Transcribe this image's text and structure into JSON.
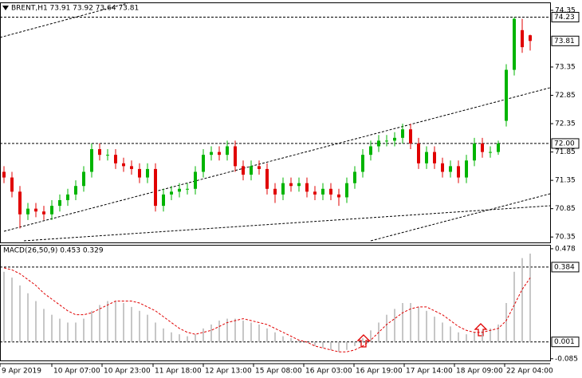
{
  "chart_data": [
    {
      "type": "candlestick",
      "title": "BRENT,H1  73.91 73.92 73.64 73.81",
      "up_color": "#00b400",
      "down_color": "#e00000",
      "open": [
        71.5,
        71.4,
        71.15,
        70.75,
        70.85,
        70.8,
        70.75,
        70.9,
        71.0,
        71.1,
        71.25,
        71.5,
        71.9,
        71.8,
        71.8,
        71.65,
        71.6,
        71.55,
        71.4,
        71.55,
        70.9,
        71.1,
        71.15,
        71.2,
        71.2,
        71.5,
        71.8,
        71.85,
        71.8,
        71.95,
        71.6,
        71.45,
        71.6,
        71.55,
        71.2,
        71.1,
        71.3,
        71.25,
        71.3,
        71.15,
        71.1,
        71.2,
        71.1,
        71.05,
        71.3,
        71.5,
        71.8,
        71.95,
        72.05,
        72.05,
        72.1,
        72.25,
        72.0,
        71.65,
        71.85,
        71.65,
        71.5,
        71.6,
        71.4,
        71.7,
        72.0,
        71.85,
        71.85,
        72.4,
        73.3,
        74.0,
        73.91
      ],
      "high": [
        71.6,
        71.5,
        71.25,
        70.95,
        70.95,
        70.9,
        71.0,
        71.1,
        71.2,
        71.35,
        71.6,
        72.0,
        72.0,
        71.9,
        71.9,
        71.75,
        71.7,
        71.65,
        71.65,
        71.65,
        71.2,
        71.25,
        71.3,
        71.3,
        71.6,
        71.9,
        71.95,
        71.95,
        72.05,
        72.05,
        71.7,
        71.7,
        71.7,
        71.65,
        71.3,
        71.4,
        71.4,
        71.4,
        71.4,
        71.25,
        71.3,
        71.3,
        71.2,
        71.4,
        71.6,
        71.9,
        72.05,
        72.15,
        72.15,
        72.2,
        72.35,
        72.35,
        72.1,
        71.95,
        71.95,
        71.75,
        71.7,
        71.7,
        71.8,
        72.1,
        72.1,
        71.95,
        72.05,
        73.4,
        74.23,
        74.2,
        73.92
      ],
      "low": [
        71.3,
        71.05,
        70.5,
        70.65,
        70.7,
        70.65,
        70.65,
        70.8,
        70.9,
        71.0,
        71.15,
        71.4,
        71.7,
        71.7,
        71.55,
        71.5,
        71.45,
        71.3,
        71.3,
        70.8,
        70.8,
        71.0,
        71.05,
        71.1,
        71.1,
        71.4,
        71.7,
        71.7,
        71.7,
        71.5,
        71.35,
        71.35,
        71.45,
        71.1,
        70.95,
        71.0,
        71.15,
        71.15,
        71.05,
        71.0,
        71.0,
        71.0,
        70.9,
        70.95,
        71.2,
        71.4,
        71.7,
        71.85,
        71.95,
        71.95,
        72.0,
        71.9,
        71.55,
        71.55,
        71.55,
        71.4,
        71.4,
        71.3,
        71.3,
        71.6,
        71.75,
        71.75,
        71.8,
        72.3,
        73.2,
        73.6,
        73.64
      ],
      "close": [
        71.4,
        71.15,
        70.75,
        70.85,
        70.8,
        70.75,
        70.9,
        71.0,
        71.1,
        71.25,
        71.5,
        71.9,
        71.8,
        71.8,
        71.65,
        71.6,
        71.55,
        71.4,
        71.55,
        70.9,
        71.1,
        71.15,
        71.2,
        71.2,
        71.5,
        71.8,
        71.85,
        71.8,
        71.95,
        71.6,
        71.45,
        71.6,
        71.55,
        71.2,
        71.1,
        71.3,
        71.25,
        71.3,
        71.15,
        71.1,
        71.2,
        71.1,
        71.05,
        71.3,
        71.5,
        71.8,
        71.95,
        72.05,
        72.05,
        72.1,
        72.25,
        72.0,
        71.65,
        71.85,
        71.65,
        71.5,
        71.6,
        71.4,
        71.7,
        72.0,
        71.85,
        71.85,
        72.0,
        73.3,
        74.2,
        73.7,
        73.81
      ],
      "xlim": [
        -0.5,
        68.5
      ],
      "xticks": [
        {
          "value": -0.5,
          "label": "9 Apr 2019"
        },
        {
          "value": 6,
          "label": "10 Apr 07:00"
        },
        {
          "value": 12.3,
          "label": "10 Apr 23:00"
        },
        {
          "value": 18.7,
          "label": "11 Apr 18:00"
        },
        {
          "value": 25,
          "label": "12 Apr 13:00"
        },
        {
          "value": 31.3,
          "label": "15 Apr 08:00"
        },
        {
          "value": 37.6,
          "label": "16 Apr 03:00"
        },
        {
          "value": 43.9,
          "label": "16 Apr 19:00"
        },
        {
          "value": 50.2,
          "label": "17 Apr 14:00"
        },
        {
          "value": 56.5,
          "label": "18 Apr 09:00"
        },
        {
          "value": 62.8,
          "label": "22 Apr 04:00"
        }
      ],
      "ylim": [
        70.24,
        74.49
      ],
      "yticks": [
        74.35,
        73.35,
        72.85,
        72.35,
        71.85,
        71.35,
        70.85,
        70.35
      ],
      "levels": [
        74.23,
        {
          "value": 72,
          "label": "72.00"
        }
      ],
      "last_price": 73.81
    },
    {
      "type": "macd",
      "title": "MACD(26,50,9) 0.453 0.329",
      "histogram_color": "#b4b4b4",
      "histogram": [
        0.36,
        0.33,
        0.29,
        0.25,
        0.21,
        0.17,
        0.14,
        0.12,
        0.1,
        0.1,
        0.12,
        0.16,
        0.19,
        0.21,
        0.21,
        0.2,
        0.18,
        0.16,
        0.14,
        0.1,
        0.07,
        0.05,
        0.04,
        0.03,
        0.04,
        0.07,
        0.09,
        0.11,
        0.12,
        0.12,
        0.11,
        0.1,
        0.09,
        0.07,
        0.05,
        0.03,
        0.02,
        0.01,
        0.0,
        -0.02,
        -0.03,
        -0.04,
        -0.05,
        -0.04,
        -0.02,
        0.02,
        0.06,
        0.1,
        0.14,
        0.17,
        0.2,
        0.2,
        0.18,
        0.16,
        0.13,
        0.1,
        0.08,
        0.05,
        0.04,
        0.05,
        0.06,
        0.07,
        0.09,
        0.2,
        0.36,
        0.43,
        0.453
      ],
      "signal_color": "#e00000",
      "signal": [
        0.38,
        0.37,
        0.35,
        0.32,
        0.29,
        0.25,
        0.22,
        0.19,
        0.16,
        0.14,
        0.14,
        0.15,
        0.17,
        0.19,
        0.21,
        0.21,
        0.21,
        0.2,
        0.18,
        0.16,
        0.13,
        0.1,
        0.07,
        0.05,
        0.04,
        0.05,
        0.06,
        0.08,
        0.1,
        0.11,
        0.12,
        0.11,
        0.1,
        0.09,
        0.07,
        0.05,
        0.03,
        0.01,
        0.0,
        -0.02,
        -0.03,
        -0.04,
        -0.05,
        -0.05,
        -0.04,
        -0.02,
        0.01,
        0.05,
        0.09,
        0.12,
        0.15,
        0.17,
        0.18,
        0.18,
        0.16,
        0.14,
        0.11,
        0.08,
        0.06,
        0.05,
        0.05,
        0.06,
        0.07,
        0.11,
        0.19,
        0.27,
        0.329
      ],
      "ylim": [
        -0.094,
        0.498
      ],
      "yticks": [
        0.478,
        -0.085
      ],
      "levels": [
        0.384,
        0.001
      ]
    }
  ]
}
